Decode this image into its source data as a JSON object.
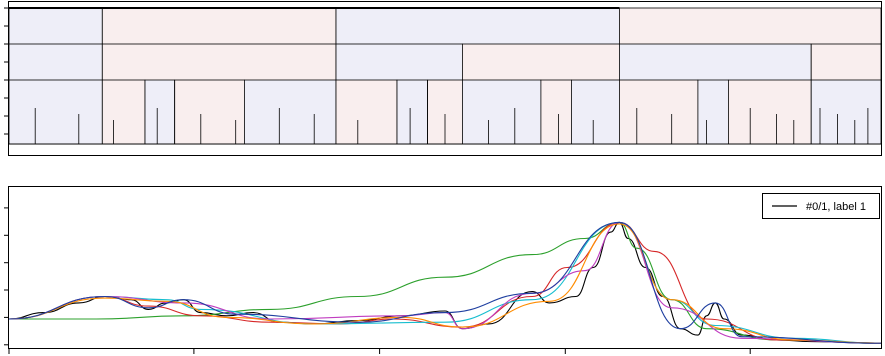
{
  "chart_data": [
    {
      "type": "icicle",
      "description_free": true,
      "fill_colors": [
        "#eeeef8",
        "#f9eeee"
      ],
      "x_range": [
        0,
        100
      ],
      "levels": [
        {
          "spans": [
            [
              0,
              10.7
            ],
            [
              10.7,
              37.5
            ],
            [
              37.5,
              70.0
            ],
            [
              70.0,
              100
            ]
          ]
        },
        {
          "spans": [
            [
              0,
              10.7
            ],
            [
              10.7,
              37.5
            ],
            [
              37.5,
              52.0
            ],
            [
              52.0,
              70.0
            ],
            [
              70.0,
              92.0
            ],
            [
              92.0,
              100
            ]
          ]
        },
        {
          "spans": [
            [
              0,
              10.7
            ],
            [
              10.7,
              15.6
            ],
            [
              15.6,
              19.0
            ],
            [
              19.0,
              27.0
            ],
            [
              27.0,
              37.5
            ],
            [
              37.5,
              44.5
            ],
            [
              44.5,
              48.0
            ],
            [
              48.0,
              52.0
            ],
            [
              52.0,
              61.0
            ],
            [
              61.0,
              64.5
            ],
            [
              64.5,
              70.0
            ],
            [
              70.0,
              79.0
            ],
            [
              79.0,
              82.5
            ],
            [
              82.5,
              92.0
            ],
            [
              92.0,
              100
            ]
          ]
        }
      ]
    },
    {
      "type": "line",
      "legend": {
        "position": "top-right",
        "entries": [
          {
            "label": "#0/1, label 1",
            "color": "#000000"
          }
        ]
      },
      "xlim": [
        0,
        100
      ],
      "ylim": [
        0,
        1
      ],
      "series": [
        {
          "color": "#000000",
          "values": [
            [
              0,
              0.18
            ],
            [
              4,
              0.22
            ],
            [
              8,
              0.28
            ],
            [
              11,
              0.32
            ],
            [
              14,
              0.3
            ],
            [
              16,
              0.24
            ],
            [
              18,
              0.28
            ],
            [
              20,
              0.3
            ],
            [
              22,
              0.22
            ],
            [
              25,
              0.2
            ],
            [
              28,
              0.22
            ],
            [
              31,
              0.16
            ],
            [
              35,
              0.15
            ],
            [
              40,
              0.17
            ],
            [
              45,
              0.2
            ],
            [
              50,
              0.23
            ],
            [
              52,
              0.12
            ],
            [
              55,
              0.15
            ],
            [
              60,
              0.35
            ],
            [
              62,
              0.28
            ],
            [
              65,
              0.32
            ],
            [
              67,
              0.5
            ],
            [
              69,
              0.72
            ],
            [
              70,
              0.78
            ],
            [
              71,
              0.68
            ],
            [
              73,
              0.5
            ],
            [
              75,
              0.32
            ],
            [
              77,
              0.12
            ],
            [
              79,
              0.08
            ],
            [
              80,
              0.2
            ],
            [
              81,
              0.28
            ],
            [
              82,
              0.18
            ],
            [
              84,
              0.08
            ],
            [
              88,
              0.05
            ],
            [
              92,
              0.04
            ],
            [
              100,
              0.03
            ]
          ]
        },
        {
          "color": "#2ca02c",
          "values": [
            [
              0,
              0.18
            ],
            [
              10,
              0.18
            ],
            [
              20,
              0.2
            ],
            [
              30,
              0.24
            ],
            [
              40,
              0.32
            ],
            [
              50,
              0.44
            ],
            [
              60,
              0.58
            ],
            [
              66,
              0.68
            ],
            [
              70,
              0.78
            ],
            [
              72,
              0.62
            ],
            [
              76,
              0.3
            ],
            [
              80,
              0.12
            ],
            [
              88,
              0.05
            ],
            [
              100,
              0.03
            ]
          ]
        },
        {
          "color": "#d62728",
          "values": [
            [
              0,
              0.18
            ],
            [
              11,
              0.32
            ],
            [
              16,
              0.26
            ],
            [
              22,
              0.2
            ],
            [
              30,
              0.16
            ],
            [
              38,
              0.15
            ],
            [
              44,
              0.18
            ],
            [
              52,
              0.13
            ],
            [
              60,
              0.32
            ],
            [
              64,
              0.5
            ],
            [
              70,
              0.78
            ],
            [
              74,
              0.6
            ],
            [
              80,
              0.18
            ],
            [
              88,
              0.05
            ],
            [
              100,
              0.03
            ]
          ]
        },
        {
          "color": "#17becf",
          "values": [
            [
              0,
              0.18
            ],
            [
              11,
              0.32
            ],
            [
              18,
              0.3
            ],
            [
              22,
              0.24
            ],
            [
              35,
              0.15
            ],
            [
              50,
              0.16
            ],
            [
              60,
              0.3
            ],
            [
              70,
              0.78
            ],
            [
              76,
              0.3
            ],
            [
              81,
              0.14
            ],
            [
              90,
              0.06
            ],
            [
              100,
              0.03
            ]
          ]
        },
        {
          "color": "#c03cc0",
          "values": [
            [
              0,
              0.18
            ],
            [
              11,
              0.32
            ],
            [
              20,
              0.28
            ],
            [
              30,
              0.18
            ],
            [
              45,
              0.2
            ],
            [
              50,
              0.22
            ],
            [
              52,
              0.12
            ],
            [
              60,
              0.34
            ],
            [
              66,
              0.48
            ],
            [
              70,
              0.78
            ],
            [
              76,
              0.25
            ],
            [
              84,
              0.06
            ],
            [
              100,
              0.03
            ]
          ]
        },
        {
          "color": "#ff8c00",
          "values": [
            [
              0,
              0.18
            ],
            [
              11,
              0.31
            ],
            [
              18,
              0.29
            ],
            [
              25,
              0.19
            ],
            [
              35,
              0.15
            ],
            [
              45,
              0.19
            ],
            [
              52,
              0.13
            ],
            [
              62,
              0.29
            ],
            [
              70,
              0.77
            ],
            [
              76,
              0.3
            ],
            [
              82,
              0.12
            ],
            [
              90,
              0.05
            ],
            [
              100,
              0.03
            ]
          ]
        },
        {
          "color": "#1f3fa0",
          "values": [
            [
              0,
              0.18
            ],
            [
              11,
              0.32
            ],
            [
              16,
              0.25
            ],
            [
              20,
              0.3
            ],
            [
              26,
              0.21
            ],
            [
              40,
              0.16
            ],
            [
              50,
              0.22
            ],
            [
              60,
              0.34
            ],
            [
              70,
              0.78
            ],
            [
              77,
              0.12
            ],
            [
              81,
              0.28
            ],
            [
              84,
              0.07
            ],
            [
              100,
              0.03
            ]
          ]
        }
      ]
    }
  ]
}
